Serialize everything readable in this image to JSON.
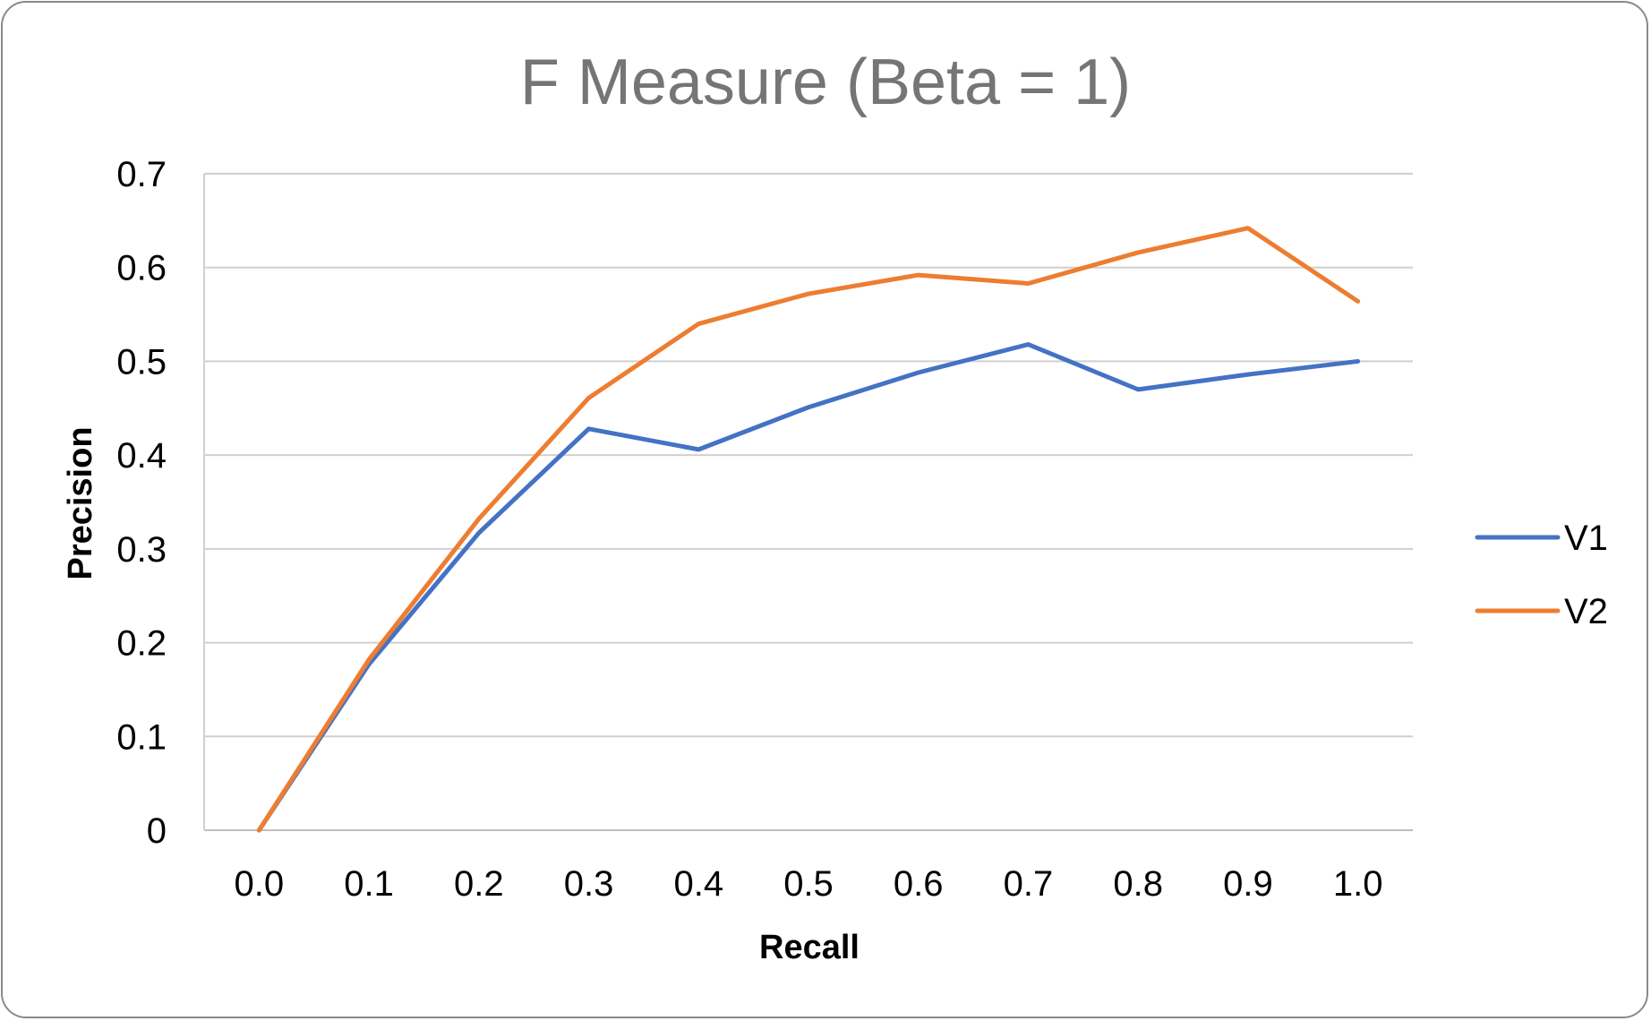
{
  "chart_data": {
    "type": "line",
    "title": "F Measure (Beta = 1)",
    "xlabel": "Recall",
    "ylabel": "Precision",
    "categories": [
      "0.0",
      "0.1",
      "0.2",
      "0.3",
      "0.4",
      "0.5",
      "0.6",
      "0.7",
      "0.8",
      "0.9",
      "1.0"
    ],
    "y_ticks": [
      "0",
      "0.1",
      "0.2",
      "0.3",
      "0.4",
      "0.5",
      "0.6",
      "0.7"
    ],
    "ylim": [
      0,
      0.7
    ],
    "grid": "horizontal",
    "legend_position": "right",
    "series": [
      {
        "name": "V1",
        "color": "#4472C4",
        "values": [
          0,
          0.177,
          0.317,
          0.428,
          0.406,
          0.451,
          0.488,
          0.518,
          0.47,
          0.486,
          0.5
        ]
      },
      {
        "name": "V2",
        "color": "#ED7D31",
        "values": [
          0,
          0.182,
          0.332,
          0.461,
          0.54,
          0.572,
          0.592,
          0.583,
          0.616,
          0.642,
          0.564
        ]
      }
    ]
  }
}
